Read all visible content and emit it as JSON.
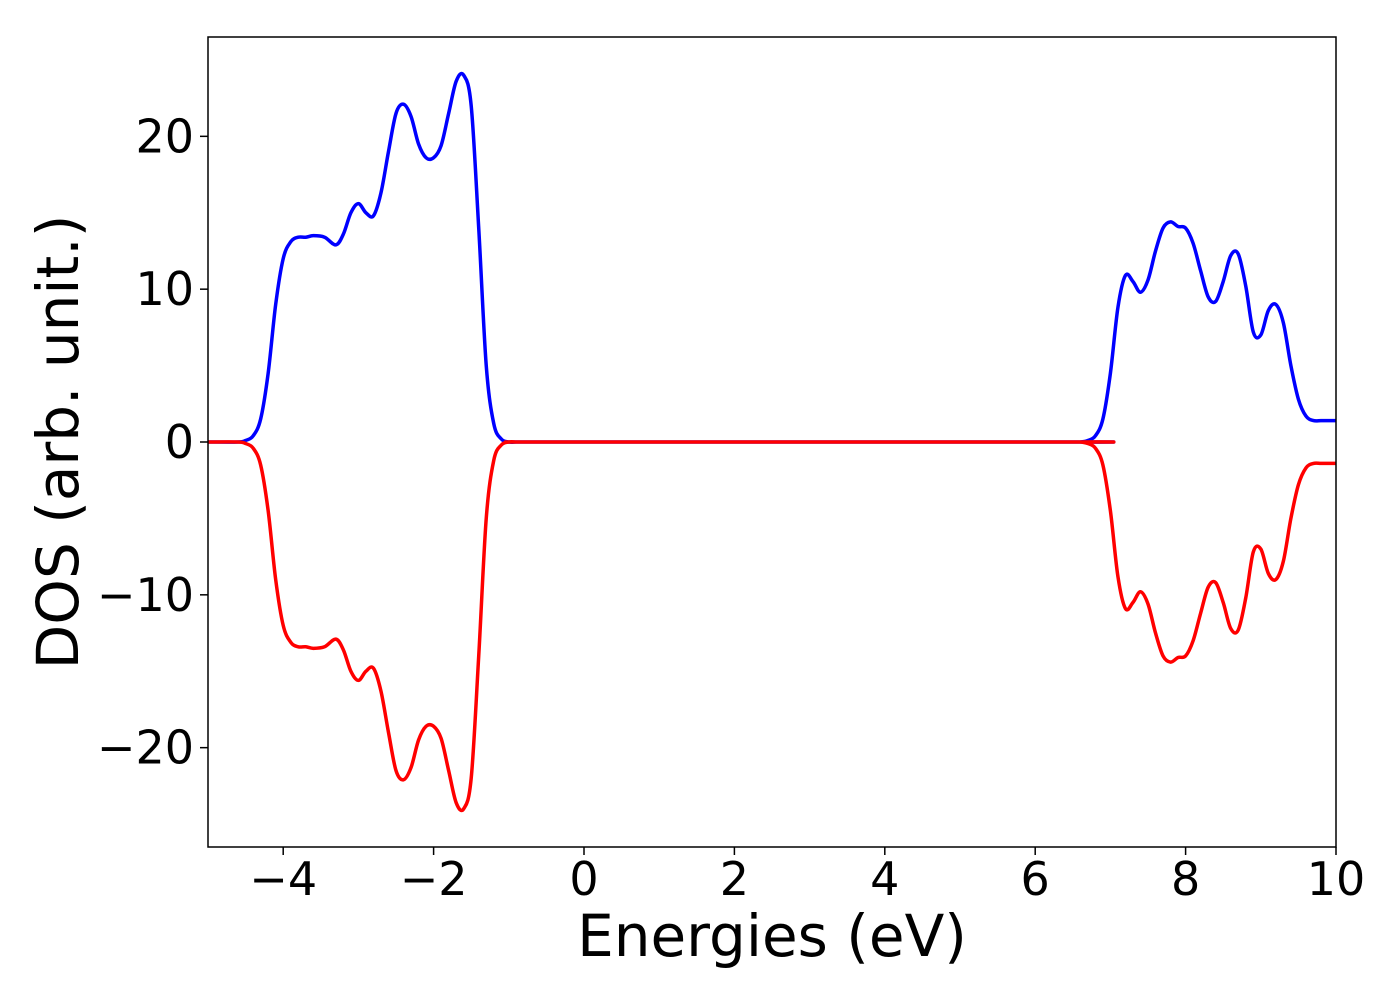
{
  "chart_data": {
    "type": "line",
    "title": "",
    "xlabel": "Energies (eV)",
    "ylabel": "DOS (arb. unit.)",
    "xlim": [
      -5,
      10
    ],
    "ylim": [
      -26.5,
      26.5
    ],
    "grid": false,
    "legend": "none",
    "x_ticks": [
      -4,
      -2,
      0,
      2,
      4,
      6,
      8,
      10
    ],
    "x_tick_labels": [
      "−4",
      "−2",
      "0",
      "2",
      "4",
      "6",
      "8",
      "10"
    ],
    "y_ticks": [
      20,
      10,
      0,
      -10,
      -20
    ],
    "y_tick_labels": [
      "20",
      "10",
      "0",
      "−10",
      "−20"
    ],
    "series": [
      {
        "color": "#0000ff",
        "x": [
          -5.0,
          -4.6,
          -4.5,
          -4.4,
          -4.3,
          -4.2,
          -4.1,
          -4.0,
          -3.9,
          -3.8,
          -3.7,
          -3.6,
          -3.45,
          -3.3,
          -3.2,
          -3.1,
          -3.0,
          -2.9,
          -2.8,
          -2.7,
          -2.6,
          -2.5,
          -2.4,
          -2.3,
          -2.2,
          -2.1,
          -2.0,
          -1.9,
          -1.8,
          -1.7,
          -1.6,
          -1.5,
          -1.4,
          -1.3,
          -1.2,
          -1.1,
          -1.0,
          -0.9,
          -0.8,
          -0.7,
          -0.6,
          -0.5,
          6.5,
          6.6,
          6.7,
          6.8,
          6.9,
          7.0,
          7.1,
          7.2,
          7.3,
          7.4,
          7.5,
          7.6,
          7.7,
          7.8,
          7.9,
          8.0,
          8.1,
          8.2,
          8.3,
          8.4,
          8.5,
          8.6,
          8.7,
          8.8,
          8.9,
          9.0,
          9.1,
          9.2,
          9.3,
          9.4,
          9.5,
          9.6,
          9.7,
          9.8,
          9.9,
          10.0
        ],
        "y": [
          0.0,
          0.0,
          0.1,
          0.4,
          1.5,
          4.5,
          9.0,
          12.0,
          13.1,
          13.4,
          13.4,
          13.5,
          13.4,
          12.9,
          13.6,
          15.0,
          15.6,
          15.0,
          14.8,
          16.3,
          19.0,
          21.5,
          22.1,
          21.3,
          19.5,
          18.6,
          18.6,
          19.4,
          21.5,
          23.6,
          24.0,
          22.0,
          14.0,
          5.0,
          1.2,
          0.2,
          0.0,
          0.0,
          0.0,
          0.0,
          0.0,
          0.0,
          0.0,
          0.0,
          0.1,
          0.4,
          1.5,
          4.5,
          8.8,
          10.9,
          10.5,
          9.8,
          10.6,
          12.5,
          14.0,
          14.4,
          14.1,
          14.0,
          13.0,
          11.2,
          9.5,
          9.2,
          10.5,
          12.2,
          12.3,
          10.2,
          7.2,
          7.0,
          8.6,
          9.0,
          7.8,
          5.0,
          2.8,
          1.7,
          1.4,
          1.4,
          1.4,
          1.4
        ]
      },
      {
        "color": "#ff0000",
        "x": [
          -5.0,
          -4.6,
          -4.5,
          -4.4,
          -4.3,
          -4.2,
          -4.1,
          -4.0,
          -3.9,
          -3.8,
          -3.7,
          -3.6,
          -3.45,
          -3.3,
          -3.2,
          -3.1,
          -3.0,
          -2.9,
          -2.8,
          -2.7,
          -2.6,
          -2.5,
          -2.4,
          -2.3,
          -2.2,
          -2.1,
          -2.0,
          -1.9,
          -1.8,
          -1.7,
          -1.6,
          -1.5,
          -1.4,
          -1.3,
          -1.2,
          -1.1,
          -1.0,
          -0.9,
          -0.8,
          -0.7,
          -0.6,
          -0.5,
          6.5,
          6.6,
          6.7,
          6.8,
          6.9,
          7.0,
          7.1,
          7.2,
          7.3,
          7.4,
          7.5,
          7.6,
          7.7,
          7.8,
          7.9,
          8.0,
          8.1,
          8.2,
          8.3,
          8.4,
          8.5,
          8.6,
          8.7,
          8.8,
          8.9,
          9.0,
          9.1,
          9.2,
          9.3,
          9.4,
          9.5,
          9.6,
          9.7,
          9.8,
          9.9,
          10.0
        ],
        "y": [
          0.0,
          0.0,
          -0.1,
          -0.4,
          -1.5,
          -4.5,
          -9.0,
          -12.0,
          -13.1,
          -13.4,
          -13.4,
          -13.5,
          -13.4,
          -12.9,
          -13.6,
          -15.0,
          -15.6,
          -15.0,
          -14.8,
          -16.3,
          -19.0,
          -21.5,
          -22.1,
          -21.3,
          -19.5,
          -18.6,
          -18.6,
          -19.4,
          -21.5,
          -23.6,
          -24.0,
          -22.0,
          -14.0,
          -5.0,
          -1.2,
          -0.2,
          0.0,
          0.0,
          0.0,
          0.0,
          0.0,
          0.0,
          0.0,
          0.0,
          -0.1,
          -0.4,
          -1.5,
          -4.5,
          -8.8,
          -10.9,
          -10.5,
          -9.8,
          -10.6,
          -12.5,
          -14.0,
          -14.4,
          -14.1,
          -14.0,
          -13.0,
          -11.2,
          -9.5,
          -9.2,
          -10.5,
          -12.2,
          -12.3,
          -10.2,
          -7.2,
          -7.0,
          -8.6,
          -9.0,
          -7.8,
          -5.0,
          -2.8,
          -1.7,
          -1.4,
          -1.4,
          -1.4,
          -1.4
        ]
      }
    ]
  }
}
